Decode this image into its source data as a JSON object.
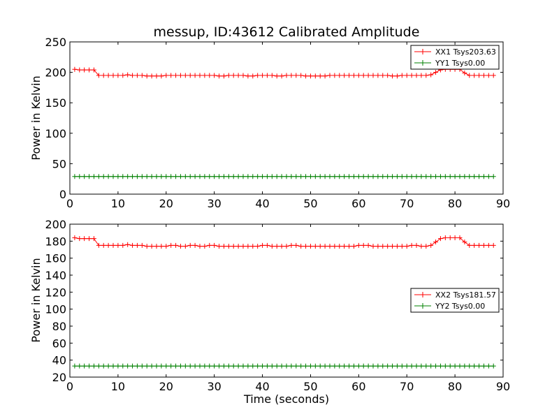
{
  "chart_data": [
    {
      "type": "line",
      "title": "messup, ID:43612 Calibrated Amplitude",
      "xlabel": "",
      "ylabel": "Power in Kelvin",
      "xlim": [
        0,
        90
      ],
      "ylim": [
        0,
        250
      ],
      "xticks": [
        0,
        10,
        20,
        30,
        40,
        50,
        60,
        70,
        80,
        90
      ],
      "yticks": [
        0,
        50,
        100,
        150,
        200,
        250
      ],
      "grid": false,
      "legend": "top-right",
      "series": [
        {
          "name": "XX1 Tsys203.63",
          "color": "#ff0000",
          "marker": "+",
          "x": [
            1,
            2,
            3,
            4,
            5,
            6,
            7,
            8,
            9,
            10,
            11,
            12,
            13,
            14,
            15,
            16,
            17,
            18,
            19,
            20,
            21,
            22,
            23,
            24,
            25,
            26,
            27,
            28,
            29,
            30,
            31,
            32,
            33,
            34,
            35,
            36,
            37,
            38,
            39,
            40,
            41,
            42,
            43,
            44,
            45,
            46,
            47,
            48,
            49,
            50,
            51,
            52,
            53,
            54,
            55,
            56,
            57,
            58,
            59,
            60,
            61,
            62,
            63,
            64,
            65,
            66,
            67,
            68,
            69,
            70,
            71,
            72,
            73,
            74,
            75,
            76,
            77,
            78,
            79,
            80,
            81,
            82,
            83,
            84,
            85,
            86,
            87,
            88
          ],
          "y": [
            205,
            204,
            204,
            204,
            204,
            195,
            195,
            195,
            195,
            195,
            195,
            196,
            195,
            195,
            195,
            194,
            194,
            194,
            194,
            195,
            195,
            195,
            195,
            195,
            195,
            195,
            195,
            195,
            195,
            195,
            194,
            194,
            195,
            195,
            195,
            195,
            194,
            194,
            195,
            195,
            195,
            195,
            194,
            194,
            195,
            195,
            195,
            195,
            194,
            194,
            194,
            194,
            194,
            195,
            195,
            195,
            195,
            195,
            195,
            195,
            195,
            195,
            195,
            195,
            195,
            195,
            194,
            194,
            195,
            195,
            195,
            195,
            195,
            195,
            196,
            200,
            204,
            205,
            205,
            205,
            205,
            199,
            195,
            195,
            195,
            195,
            195,
            195
          ]
        },
        {
          "name": "YY1 Tsys0.00",
          "color": "#008000",
          "marker": "+",
          "x": [
            1,
            2,
            3,
            4,
            5,
            6,
            7,
            8,
            9,
            10,
            11,
            12,
            13,
            14,
            15,
            16,
            17,
            18,
            19,
            20,
            21,
            22,
            23,
            24,
            25,
            26,
            27,
            28,
            29,
            30,
            31,
            32,
            33,
            34,
            35,
            36,
            37,
            38,
            39,
            40,
            41,
            42,
            43,
            44,
            45,
            46,
            47,
            48,
            49,
            50,
            51,
            52,
            53,
            54,
            55,
            56,
            57,
            58,
            59,
            60,
            61,
            62,
            63,
            64,
            65,
            66,
            67,
            68,
            69,
            70,
            71,
            72,
            73,
            74,
            75,
            76,
            77,
            78,
            79,
            80,
            81,
            82,
            83,
            84,
            85,
            86,
            87,
            88
          ],
          "y": [
            29,
            29,
            29,
            29,
            29,
            29,
            29,
            29,
            29,
            29,
            29,
            29,
            29,
            29,
            29,
            29,
            29,
            29,
            29,
            29,
            29,
            29,
            29,
            29,
            29,
            29,
            29,
            29,
            29,
            29,
            29,
            29,
            29,
            29,
            29,
            29,
            29,
            29,
            29,
            29,
            29,
            29,
            29,
            29,
            29,
            29,
            29,
            29,
            29,
            29,
            29,
            29,
            29,
            29,
            29,
            29,
            29,
            29,
            29,
            29,
            29,
            29,
            29,
            29,
            29,
            29,
            29,
            29,
            29,
            29,
            29,
            29,
            29,
            29,
            29,
            29,
            29,
            29,
            29,
            29,
            29,
            29,
            29,
            29,
            29,
            29,
            29,
            29
          ]
        }
      ]
    },
    {
      "type": "line",
      "title": "",
      "xlabel": "Time (seconds)",
      "ylabel": "Power in Kelvin",
      "xlim": [
        0,
        90
      ],
      "ylim": [
        20,
        200
      ],
      "xticks": [
        0,
        10,
        20,
        30,
        40,
        50,
        60,
        70,
        80,
        90
      ],
      "yticks": [
        20,
        40,
        60,
        80,
        100,
        120,
        140,
        160,
        180,
        200
      ],
      "grid": false,
      "legend": "center-right",
      "series": [
        {
          "name": "XX2 Tsys181.57",
          "color": "#ff0000",
          "marker": "+",
          "x": [
            1,
            2,
            3,
            4,
            5,
            6,
            7,
            8,
            9,
            10,
            11,
            12,
            13,
            14,
            15,
            16,
            17,
            18,
            19,
            20,
            21,
            22,
            23,
            24,
            25,
            26,
            27,
            28,
            29,
            30,
            31,
            32,
            33,
            34,
            35,
            36,
            37,
            38,
            39,
            40,
            41,
            42,
            43,
            44,
            45,
            46,
            47,
            48,
            49,
            50,
            51,
            52,
            53,
            54,
            55,
            56,
            57,
            58,
            59,
            60,
            61,
            62,
            63,
            64,
            65,
            66,
            67,
            68,
            69,
            70,
            71,
            72,
            73,
            74,
            75,
            76,
            77,
            78,
            79,
            80,
            81,
            82,
            83,
            84,
            85,
            86,
            87,
            88
          ],
          "y": [
            184,
            183,
            183,
            183,
            183,
            175,
            175,
            175,
            175,
            175,
            175,
            176,
            175,
            175,
            175,
            174,
            174,
            174,
            174,
            174,
            175,
            175,
            174,
            174,
            175,
            175,
            174,
            174,
            175,
            175,
            174,
            174,
            174,
            174,
            174,
            174,
            174,
            174,
            174,
            175,
            175,
            174,
            174,
            174,
            174,
            175,
            175,
            174,
            174,
            174,
            174,
            174,
            174,
            174,
            174,
            174,
            174,
            174,
            174,
            175,
            175,
            175,
            174,
            174,
            174,
            174,
            174,
            174,
            174,
            174,
            175,
            175,
            174,
            174,
            175,
            179,
            183,
            184,
            184,
            184,
            184,
            179,
            175,
            175,
            175,
            175,
            175,
            175
          ]
        },
        {
          "name": "YY2 Tsys0.00",
          "color": "#008000",
          "marker": "+",
          "x": [
            1,
            2,
            3,
            4,
            5,
            6,
            7,
            8,
            9,
            10,
            11,
            12,
            13,
            14,
            15,
            16,
            17,
            18,
            19,
            20,
            21,
            22,
            23,
            24,
            25,
            26,
            27,
            28,
            29,
            30,
            31,
            32,
            33,
            34,
            35,
            36,
            37,
            38,
            39,
            40,
            41,
            42,
            43,
            44,
            45,
            46,
            47,
            48,
            49,
            50,
            51,
            52,
            53,
            54,
            55,
            56,
            57,
            58,
            59,
            60,
            61,
            62,
            63,
            64,
            65,
            66,
            67,
            68,
            69,
            70,
            71,
            72,
            73,
            74,
            75,
            76,
            77,
            78,
            79,
            80,
            81,
            82,
            83,
            84,
            85,
            86,
            87,
            88
          ],
          "y": [
            33,
            33,
            33,
            33,
            33,
            33,
            33,
            33,
            33,
            33,
            33,
            33,
            33,
            33,
            33,
            33,
            33,
            33,
            33,
            33,
            33,
            33,
            33,
            33,
            33,
            33,
            33,
            33,
            33,
            33,
            33,
            33,
            33,
            33,
            33,
            33,
            33,
            33,
            33,
            33,
            33,
            33,
            33,
            33,
            33,
            33,
            33,
            33,
            33,
            33,
            33,
            33,
            33,
            33,
            33,
            33,
            33,
            33,
            33,
            33,
            33,
            33,
            33,
            33,
            33,
            33,
            33,
            33,
            33,
            33,
            33,
            33,
            33,
            33,
            33,
            33,
            33,
            33,
            33,
            33,
            33,
            33,
            33,
            33,
            33,
            33,
            33,
            33
          ]
        }
      ]
    }
  ]
}
